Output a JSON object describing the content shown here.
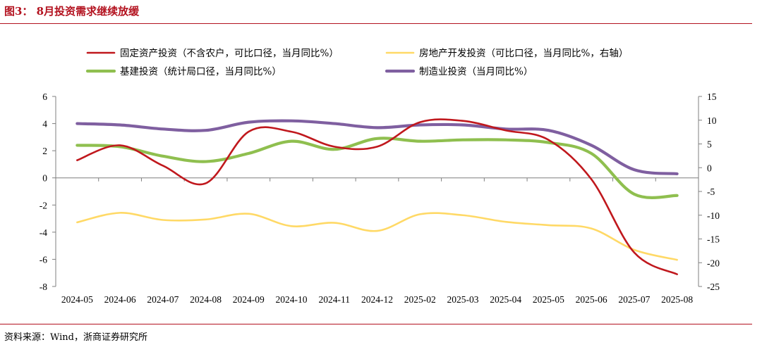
{
  "header": {
    "title": "图3： 8月投资需求继续放缓"
  },
  "footer": {
    "source": "资料来源：Wind，浙商证券研究所"
  },
  "chart_data": {
    "type": "line",
    "title": "8月投资需求继续放缓",
    "categories": [
      "2024-05",
      "2024-06",
      "2024-07",
      "2024-08",
      "2024-09",
      "2024-10",
      "2024-11",
      "2024-12",
      "2025-02",
      "2025-03",
      "2025-04",
      "2025-05",
      "2025-06",
      "2025-07",
      "2025-08"
    ],
    "left_axis": {
      "ylim": [
        -8,
        6
      ],
      "ticks": [
        -8,
        -6,
        -4,
        -2,
        0,
        2,
        4,
        6
      ]
    },
    "right_axis": {
      "ylim": [
        -25,
        15
      ],
      "ticks": [
        -25,
        -20,
        -15,
        -10,
        -5,
        0,
        5,
        10,
        15
      ]
    },
    "series": [
      {
        "name": "固定资产投资（不含农户，可比口径，当月同比%）",
        "axis": "left",
        "color": "#c0181d",
        "values": [
          1.3,
          2.4,
          0.9,
          -0.4,
          3.4,
          3.4,
          2.3,
          2.3,
          4.1,
          4.2,
          3.5,
          2.8,
          -0.1,
          -5.5,
          -7.1
        ]
      },
      {
        "name": "房地产开发投资（可比口径，当月同比%，右轴）",
        "axis": "right",
        "color": "#ffd966",
        "values": [
          -11.5,
          -9.5,
          -11.0,
          -10.9,
          -9.7,
          -12.3,
          -11.6,
          -13.3,
          -9.8,
          -10.0,
          -11.4,
          -12.1,
          -12.8,
          -17.3,
          -19.4
        ]
      },
      {
        "name": "基建投资（统计局口径，当月同比%）",
        "axis": "left",
        "color": "#8fbf4f",
        "values": [
          2.4,
          2.3,
          1.6,
          1.2,
          1.8,
          2.7,
          2.1,
          2.9,
          2.7,
          2.8,
          2.8,
          2.6,
          1.8,
          -1.2,
          -1.3
        ]
      },
      {
        "name": "制造业投资（当月同比%）",
        "axis": "left",
        "color": "#7f5fa0",
        "values": [
          4.0,
          3.9,
          3.6,
          3.5,
          4.1,
          4.2,
          4.0,
          3.7,
          3.9,
          3.9,
          3.6,
          3.5,
          2.4,
          0.6,
          0.3
        ]
      }
    ],
    "legend_position": "top"
  }
}
